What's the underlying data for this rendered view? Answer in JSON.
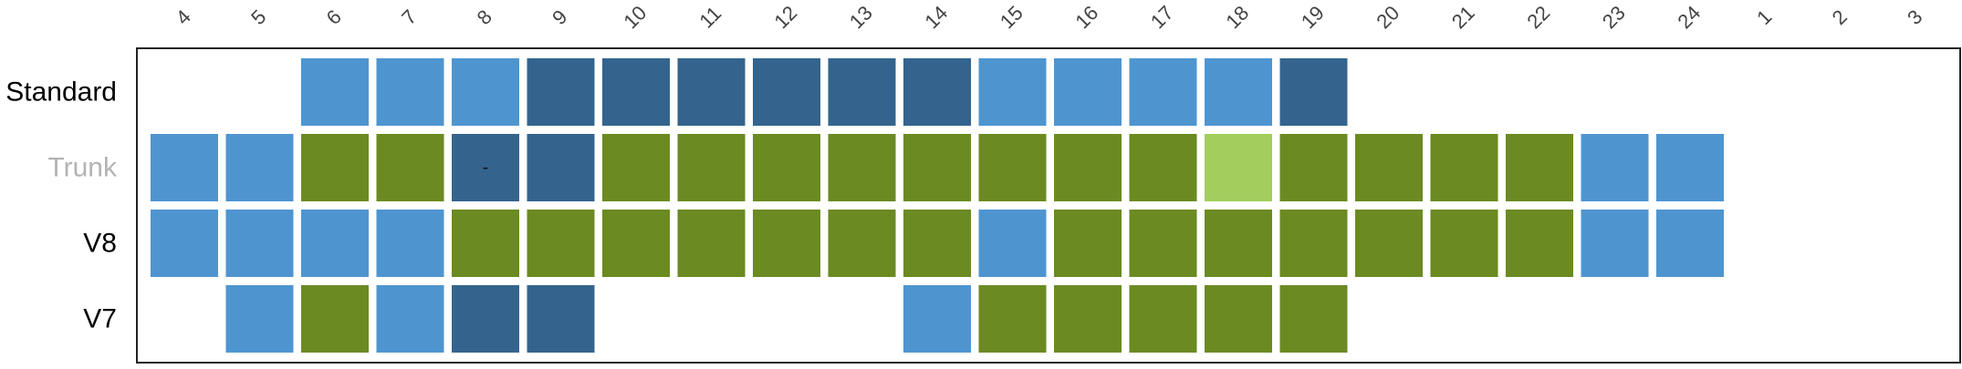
{
  "chart_data": {
    "type": "heatmap",
    "columns": [
      "4",
      "5",
      "6",
      "7",
      "8",
      "9",
      "10",
      "11",
      "12",
      "13",
      "14",
      "15",
      "16",
      "17",
      "18",
      "19",
      "20",
      "21",
      "22",
      "23",
      "24",
      "1",
      "2",
      "3"
    ],
    "rows": [
      {
        "label": "Standard",
        "label_color": "#000000",
        "cells": [
          null,
          null,
          "light",
          "light",
          "light",
          "dark",
          "dark",
          "dark",
          "dark",
          "dark",
          "dark",
          "light",
          "light",
          "light",
          "light",
          "dark",
          null,
          null,
          null,
          null,
          null,
          null,
          null,
          null
        ],
        "cell_text": {}
      },
      {
        "label": "Trunk",
        "label_color": "#b3b3b3",
        "cells": [
          "light",
          "light",
          "green",
          "green",
          "dark",
          "dark",
          "green",
          "green",
          "green",
          "green",
          "green",
          "green",
          "green",
          "green",
          "lime",
          "green",
          "green",
          "green",
          "green",
          "light",
          "light",
          null,
          null,
          null
        ],
        "cell_text": {
          "8": "-"
        }
      },
      {
        "label": "V8",
        "label_color": "#000000",
        "cells": [
          "light",
          "light",
          "light",
          "light",
          "green",
          "green",
          "green",
          "green",
          "green",
          "green",
          "green",
          "light",
          "green",
          "green",
          "green",
          "green",
          "green",
          "green",
          "green",
          "light",
          "light",
          null,
          null,
          null
        ],
        "cell_text": {}
      },
      {
        "label": "V7",
        "label_color": "#000000",
        "cells": [
          null,
          "light",
          "green",
          "light",
          "dark",
          "dark",
          null,
          null,
          null,
          null,
          "light",
          "green",
          "green",
          "green",
          "green",
          "green",
          null,
          null,
          null,
          null,
          null,
          null,
          null,
          null
        ],
        "cell_text": {}
      }
    ],
    "colors": {
      "light": "#4e95d0",
      "dark": "#34648e",
      "green": "#6b8a22",
      "lime": "#a3cd5c"
    },
    "legend": "none",
    "grid": false
  }
}
